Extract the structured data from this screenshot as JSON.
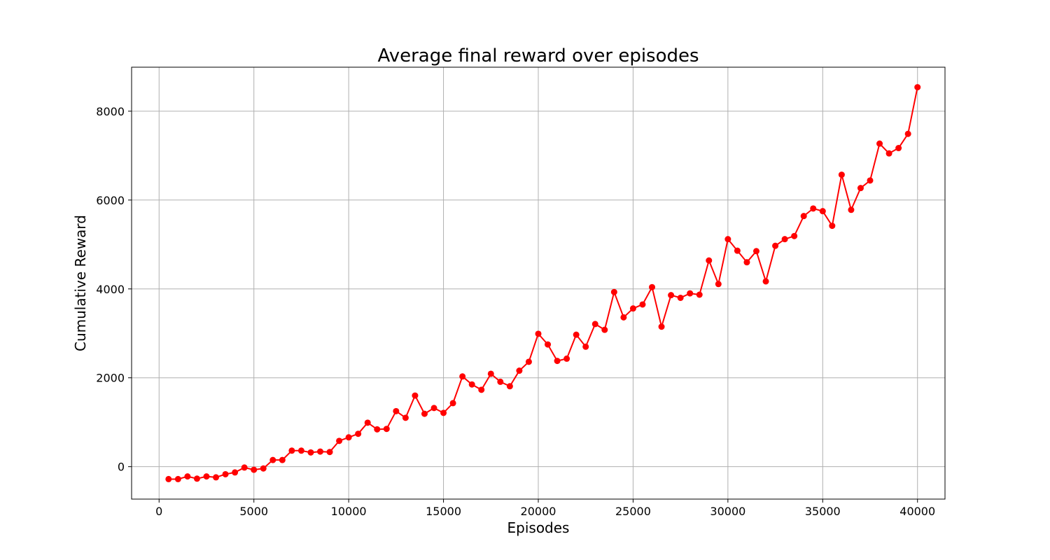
{
  "chart_data": {
    "type": "line",
    "title": "Average final reward over episodes",
    "xlabel": "Episodes",
    "ylabel": "Cumulative Reward",
    "xlim": [
      -1450,
      41450
    ],
    "ylim": [
      -730,
      8990
    ],
    "xticks": [
      0,
      5000,
      10000,
      15000,
      20000,
      25000,
      30000,
      35000,
      40000
    ],
    "yticks": [
      0,
      2000,
      4000,
      6000,
      8000
    ],
    "grid": true,
    "legend": "none",
    "series": [
      {
        "color": "#ff0000",
        "marker": "circle",
        "x": [
          500,
          1000,
          1500,
          2000,
          2500,
          3000,
          3500,
          4000,
          4500,
          5000,
          5500,
          6000,
          6500,
          7000,
          7500,
          8000,
          8500,
          9000,
          9500,
          10000,
          10500,
          11000,
          11500,
          12000,
          12500,
          13000,
          13500,
          14000,
          14500,
          15000,
          15500,
          16000,
          16500,
          17000,
          17500,
          18000,
          18500,
          19000,
          19500,
          20000,
          20500,
          21000,
          21500,
          22000,
          22500,
          23000,
          23500,
          24000,
          24500,
          25000,
          25500,
          26000,
          26500,
          27000,
          27500,
          28000,
          28500,
          29000,
          29500,
          30000,
          30500,
          31000,
          31500,
          32000,
          32500,
          33000,
          33500,
          34000,
          34500,
          35000,
          35500,
          36000,
          36500,
          37000,
          37500,
          38000,
          38500,
          39000,
          39500,
          40000
        ],
        "y": [
          -280,
          -280,
          -220,
          -270,
          -220,
          -240,
          -170,
          -130,
          -20,
          -70,
          -40,
          150,
          150,
          360,
          360,
          320,
          340,
          330,
          580,
          660,
          740,
          990,
          840,
          850,
          1250,
          1100,
          1600,
          1190,
          1320,
          1210,
          1430,
          2030,
          1850,
          1730,
          2090,
          1910,
          1810,
          2160,
          2360,
          2990,
          2750,
          2380,
          2430,
          2970,
          2700,
          3210,
          3080,
          3930,
          3360,
          3560,
          3650,
          4040,
          3150,
          3860,
          3800,
          3900,
          3870,
          4640,
          4110,
          5120,
          4860,
          4600,
          4850,
          4170,
          4970,
          5120,
          5190,
          5640,
          5810,
          5750,
          5420,
          6570,
          5780,
          6270,
          6440,
          7270,
          7050,
          7170,
          7490,
          8540
        ]
      }
    ]
  }
}
